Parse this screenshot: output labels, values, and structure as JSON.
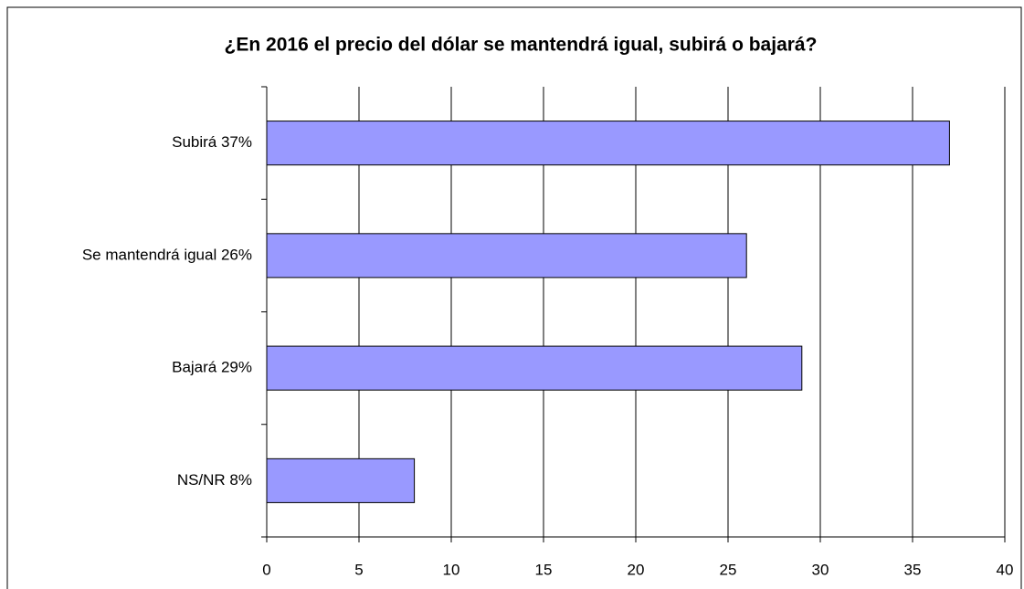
{
  "chart_data": {
    "type": "bar",
    "orientation": "horizontal",
    "title": "¿En 2016 el precio del dólar se mantendrá igual, subirá o bajará?",
    "categories": [
      "Subirá  37%",
      "Se mantendrá igual  26%",
      "Bajará  29%",
      "NS/NR  8%"
    ],
    "values": [
      37,
      26,
      29,
      8
    ],
    "color": "#9999ff",
    "xlim": [
      0,
      40
    ],
    "xticks": [
      0,
      5,
      10,
      15,
      20,
      25,
      30,
      35,
      40
    ],
    "grid": true
  }
}
